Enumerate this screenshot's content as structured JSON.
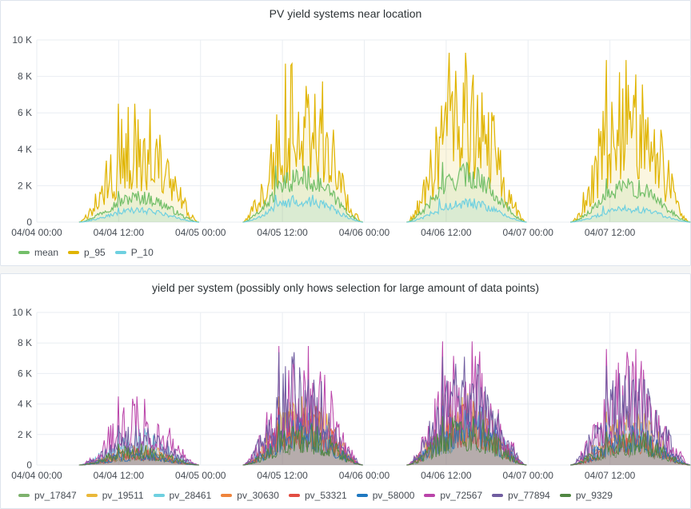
{
  "panels": [
    {
      "title": "PV yield systems near location"
    },
    {
      "title": "yield per system (possibly only hows selection for large amount of data points)"
    }
  ],
  "chart_data": [
    {
      "type": "area",
      "title": "PV yield systems near location",
      "x_unit": "hours since 04/04 00:00",
      "x_ticks": [
        "04/04 00:00",
        "04/04 12:00",
        "04/05 00:00",
        "04/05 12:00",
        "04/06 00:00",
        "04/06 12:00",
        "04/07 00:00",
        "04/07 12:00"
      ],
      "xlim": [
        0,
        96
      ],
      "y_ticks": [
        "0",
        "2 K",
        "4 K",
        "6 K",
        "8 K",
        "10 K"
      ],
      "ylim": [
        0,
        10000
      ],
      "grid": true,
      "legend_position": "bottom-left",
      "series": [
        {
          "name": "mean",
          "color": "#73bf69",
          "days": [
            {
              "start": 3.0,
              "end": 9.0,
              "peak_hour": 12.0,
              "peak_value": 1700
            },
            {
              "start": 27.0,
              "end": 33.0,
              "peak_hour": 35.0,
              "peak_value": 3100
            },
            {
              "start": 51.0,
              "end": 57.0,
              "peak_hour": 59.5,
              "peak_value": 3300
            },
            {
              "start": 75.0,
              "end": 81.0,
              "peak_hour": 83.5,
              "peak_value": 2400
            }
          ]
        },
        {
          "name": "p_95",
          "color": "#e0b400",
          "days": [
            {
              "start": 3.0,
              "end": 9.0,
              "peak_hour": 12.0,
              "peak_value": 6500
            },
            {
              "start": 27.0,
              "end": 33.0,
              "peak_hour": 36.5,
              "peak_value": 8700
            },
            {
              "start": 51.0,
              "end": 57.0,
              "peak_hour": 60.5,
              "peak_value": 9300
            },
            {
              "start": 75.0,
              "end": 81.0,
              "peak_hour": 83.5,
              "peak_value": 8900
            }
          ]
        },
        {
          "name": "P_10",
          "color": "#6ed0e0",
          "days": [
            {
              "start": 3.0,
              "end": 9.0,
              "peak_hour": 12.0,
              "peak_value": 800
            },
            {
              "start": 27.0,
              "end": 33.0,
              "peak_hour": 35.0,
              "peak_value": 1500
            },
            {
              "start": 51.0,
              "end": 57.0,
              "peak_hour": 59.0,
              "peak_value": 1300
            },
            {
              "start": 75.0,
              "end": 81.0,
              "peak_hour": 83.0,
              "peak_value": 900
            }
          ]
        }
      ]
    },
    {
      "type": "area",
      "title": "yield per system (possibly only hows selection for large amount of data points)",
      "x_unit": "hours since 04/04 00:00",
      "x_ticks": [
        "04/04 00:00",
        "04/04 12:00",
        "04/05 00:00",
        "04/05 12:00",
        "04/06 00:00",
        "04/06 12:00",
        "04/07 00:00",
        "04/07 12:00"
      ],
      "xlim": [
        0,
        96
      ],
      "y_ticks": [
        "0",
        "2 K",
        "4 K",
        "6 K",
        "8 K",
        "10 K"
      ],
      "ylim": [
        0,
        10000
      ],
      "grid": true,
      "legend_position": "bottom-left",
      "series": [
        {
          "name": "pv_17847",
          "color": "#7eb26d",
          "peaks": [
            1000,
            3000,
            3500,
            2000
          ]
        },
        {
          "name": "pv_19511",
          "color": "#eab839",
          "peaks": [
            1300,
            4500,
            4700,
            3500
          ]
        },
        {
          "name": "pv_28461",
          "color": "#6ed0e0",
          "peaks": [
            2400,
            3500,
            3600,
            2800
          ]
        },
        {
          "name": "pv_30630",
          "color": "#ef843c",
          "peaks": [
            1200,
            3600,
            4200,
            2500
          ]
        },
        {
          "name": "pv_53321",
          "color": "#e24d42",
          "peaks": [
            1100,
            3800,
            4300,
            2400
          ]
        },
        {
          "name": "pv_58000",
          "color": "#1f78c1",
          "peaks": [
            1000,
            3300,
            3900,
            2600
          ]
        },
        {
          "name": "pv_72567",
          "color": "#ba43a9",
          "peaks": [
            4500,
            7800,
            8100,
            7600
          ]
        },
        {
          "name": "pv_77894",
          "color": "#705da0",
          "peaks": [
            2600,
            7400,
            7100,
            6500
          ]
        },
        {
          "name": "pv_9329",
          "color": "#508642",
          "peaks": [
            1400,
            2700,
            3200,
            2200
          ]
        }
      ],
      "day_peak_hours": [
        12.0,
        35.5,
        59.5,
        83.5
      ],
      "day_windows": [
        [
          3,
          9
        ],
        [
          27,
          33
        ],
        [
          51,
          57
        ],
        [
          75,
          81
        ]
      ]
    }
  ]
}
